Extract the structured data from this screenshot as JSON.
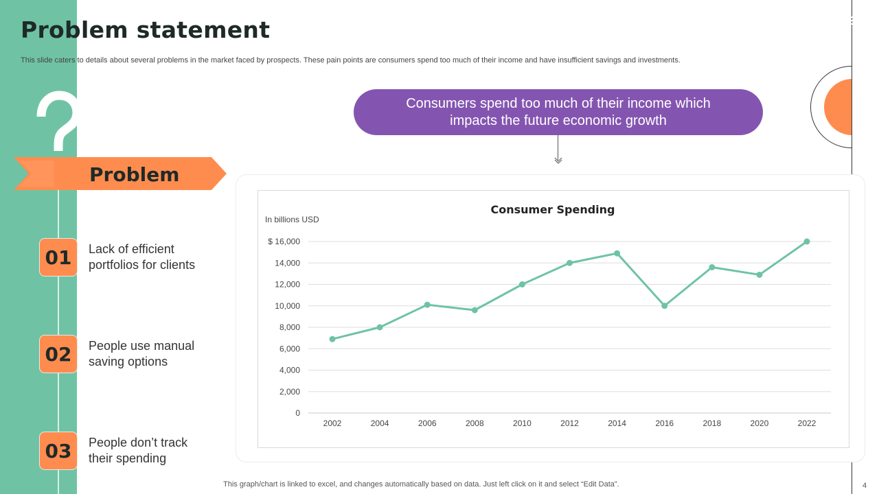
{
  "slide": {
    "title": "Problem statement",
    "subtitle": "This slide caters to details about several problems in the market faced by prospects. These pain points are consumers spend too much of their income and have insufficient savings and investments.",
    "callout_line1": "Consumers spend too much of their income which",
    "callout_line2": "impacts the future economic growth",
    "problem_heading": "Problem",
    "items": [
      {
        "number": "01",
        "line1": "Lack of efficient",
        "line2": "portfolios for clients"
      },
      {
        "number": "02",
        "line1": "People use manual",
        "line2": "saving options"
      },
      {
        "number": "03",
        "line1": "People don’t track",
        "line2": "their spending"
      }
    ],
    "chart_note": "This graph/chart is linked to excel, and changes automatically based on data. Just left click on it and select “Edit Data”.",
    "page_number": "4"
  },
  "colors": {
    "green": "#6fc3a4",
    "orange": "#ff8c4f",
    "purple": "#8455b0",
    "line": "#6fc3a4",
    "dark": "#1e2a28"
  },
  "chart_data": {
    "type": "line",
    "title": "Consumer Spending",
    "ylabel": "In billions USD",
    "xlabel": "",
    "x": [
      2002,
      2004,
      2006,
      2008,
      2010,
      2012,
      2014,
      2016,
      2018,
      2020,
      2022
    ],
    "series": [
      {
        "name": "Consumer Spending",
        "values": [
          6900,
          8000,
          10100,
          9600,
          12000,
          14000,
          14900,
          10000,
          13600,
          12900,
          16000
        ]
      }
    ],
    "ylim": [
      0,
      16000
    ],
    "y_ticks": [
      0,
      2000,
      4000,
      6000,
      8000,
      10000,
      12000,
      14000,
      16000
    ],
    "y_tick_labels": [
      "0",
      "2,000",
      "4,000",
      "6,000",
      "8,000",
      "10,000",
      "12,000",
      "14,000",
      "$ 16,000"
    ],
    "x_tick_labels": [
      "2002",
      "2004",
      "2006",
      "2008",
      "2010",
      "2012",
      "2014",
      "2016",
      "2018",
      "2020",
      "2022"
    ],
    "grid": true,
    "legend": "none"
  }
}
